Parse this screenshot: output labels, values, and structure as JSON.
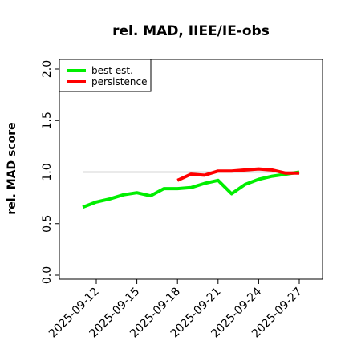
{
  "chart_data": {
    "type": "line",
    "title": "rel. MAD, IIEE/IE-obs",
    "xlabel": "",
    "ylabel": "rel. MAD score",
    "ylim": [
      0.0,
      2.0
    ],
    "yticks": [
      "0.0",
      "0.5",
      "1.0",
      "1.5",
      "2.0"
    ],
    "ytick_values": [
      0.0,
      0.5,
      1.0,
      1.5,
      2.0
    ],
    "xticks": [
      "2025-09-12",
      "2025-09-15",
      "2025-09-18",
      "2025-09-21",
      "2025-09-24",
      "2025-09-27"
    ],
    "xtick_values": [
      "2025-09-12",
      "2025-09-15",
      "2025-09-18",
      "2025-09-21",
      "2025-09-24",
      "2025-09-27"
    ],
    "xlim": [
      "2025-09-09",
      "2025-09-28"
    ],
    "legend_position": "top-left",
    "reference_line": {
      "y": 1.0,
      "x_start": "2025-09-11",
      "x_end": "2025-09-27",
      "color": "#555555"
    },
    "series": [
      {
        "name": "best est.",
        "color": "#00ee00",
        "x": [
          "2025-09-11",
          "2025-09-12",
          "2025-09-13",
          "2025-09-14",
          "2025-09-15",
          "2025-09-16",
          "2025-09-17",
          "2025-09-18",
          "2025-09-19",
          "2025-09-20",
          "2025-09-21",
          "2025-09-22",
          "2025-09-23",
          "2025-09-24",
          "2025-09-25",
          "2025-09-26",
          "2025-09-27"
        ],
        "values": [
          0.66,
          0.71,
          0.74,
          0.78,
          0.8,
          0.77,
          0.84,
          0.84,
          0.85,
          0.89,
          0.92,
          0.79,
          0.88,
          0.93,
          0.96,
          0.98,
          1.0
        ]
      },
      {
        "name": "persistence",
        "color": "#ff0000",
        "x": [
          "2025-09-18",
          "2025-09-19",
          "2025-09-20",
          "2025-09-21",
          "2025-09-22",
          "2025-09-23",
          "2025-09-24",
          "2025-09-25",
          "2025-09-26",
          "2025-09-27"
        ],
        "values": [
          0.92,
          0.98,
          0.97,
          1.01,
          1.01,
          1.02,
          1.03,
          1.02,
          0.99,
          0.99
        ]
      }
    ]
  }
}
